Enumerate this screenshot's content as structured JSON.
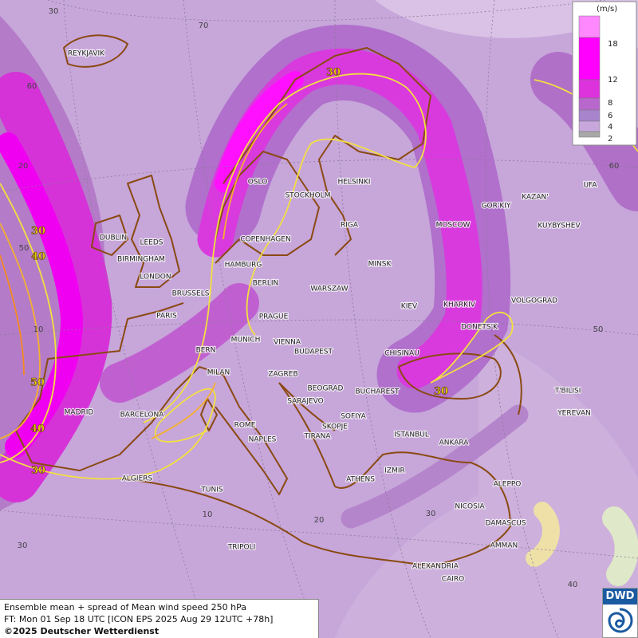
{
  "legend": {
    "unit": "(m/s)",
    "labels": [
      18,
      12,
      8,
      6,
      4,
      2
    ]
  },
  "cities": [
    "REYKJAVIK",
    "OSLO",
    "STOCKHOLM",
    "HELSINKI",
    "GOR'KIY",
    "KAZAN'",
    "UFA",
    "DUBLIN",
    "LEEDS",
    "RIGA",
    "MOSCOW",
    "KUYBYSHEV",
    "COPENHAGEN",
    "BIRMINGHAM",
    "MINSK",
    "HAMBURG",
    "LONDON",
    "BERLIN",
    "WARSZAW",
    "BRUSSELS",
    "KIEV",
    "KHARKIV",
    "VOLGOGRAD",
    "PARIS",
    "PRAGUE",
    "DONETS'K",
    "MUNICH",
    "VIENNA",
    "BERN",
    "BUDAPEST",
    "CHISINAU",
    "MILAN",
    "ZAGREB",
    "BEOGRAD",
    "BUCHAREST",
    "T'BILISI",
    "MADRID",
    "BARCELONA",
    "SARAJEVO",
    "SOFIYA",
    "YEREVAN",
    "ROME",
    "SKOPJE",
    "ISTANBUL",
    "NAPLES",
    "TIRANA",
    "ANKARA",
    "IZMIR",
    "ALGIERS",
    "ATHENS",
    "ALEPPO",
    "TUNIS",
    "NICOSIA",
    "DAMASCUS",
    "AMMAN",
    "TRIPOLI",
    "ALEXANDRIA",
    "CAIRO"
  ],
  "graticule_labels": [
    "30",
    "70",
    "60",
    "20",
    "50",
    "10",
    "30",
    "10",
    "20",
    "30",
    "40",
    "50",
    "60"
  ],
  "contour_labels": [
    "30",
    "30",
    "40",
    "50",
    "40",
    "30",
    "30"
  ],
  "caption": [
    "Ensemble mean + spread of Mean wind speed 250 hPa",
    "FT: Mon 01 Sep 18 UTC [ICON EPS 2025 Aug 29 12UTC +78h]",
    "©2025 Deutscher Wetterdienst"
  ],
  "logo": "DWD"
}
